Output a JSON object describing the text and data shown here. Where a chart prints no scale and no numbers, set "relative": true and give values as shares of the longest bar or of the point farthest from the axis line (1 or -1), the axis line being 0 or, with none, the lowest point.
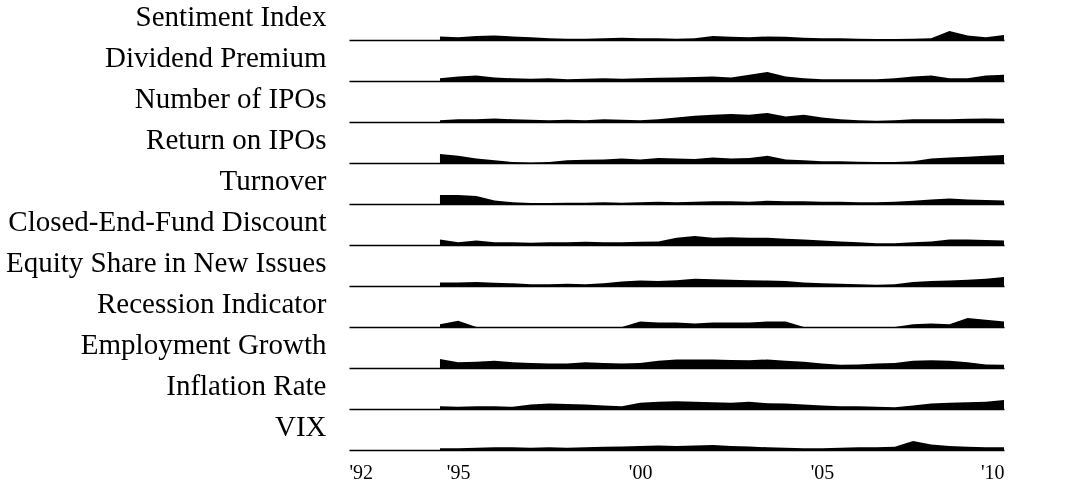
{
  "chart_data": [
    {
      "type": "area",
      "relative": true,
      "ylabel": "Sentiment Index",
      "color": "#000000",
      "xlim": [
        1992,
        2010
      ],
      "x": [
        1994.5,
        1995,
        1995.5,
        1996,
        1996.5,
        1997,
        1997.5,
        1998,
        1998.5,
        1999,
        1999.5,
        2000,
        2000.5,
        2001,
        2001.5,
        2002,
        2002.5,
        2003,
        2003.5,
        2004,
        2004.5,
        2005,
        2005.5,
        2006,
        2006.5,
        2007,
        2007.5,
        2008,
        2008.5,
        2009,
        2009.5,
        2010
      ],
      "values": [
        0.4,
        0.3,
        0.45,
        0.5,
        0.4,
        0.3,
        0.2,
        0.15,
        0.15,
        0.2,
        0.25,
        0.2,
        0.2,
        0.15,
        0.2,
        0.45,
        0.35,
        0.3,
        0.4,
        0.35,
        0.25,
        0.2,
        0.2,
        0.15,
        0.1,
        0.1,
        0.15,
        0.2,
        1.0,
        0.5,
        0.3,
        0.55
      ]
    },
    {
      "type": "area",
      "relative": true,
      "ylabel": "Dividend Premium",
      "color": "#000000",
      "xlim": [
        1992,
        2010
      ],
      "x": [
        1994.5,
        1995,
        1995.5,
        1996,
        1996.5,
        1997,
        1997.5,
        1998,
        1998.5,
        1999,
        1999.5,
        2000,
        2000.5,
        2001,
        2001.5,
        2002,
        2002.5,
        2003,
        2003.5,
        2004,
        2004.5,
        2005,
        2005.5,
        2006,
        2006.5,
        2007,
        2007.5,
        2008,
        2008.5,
        2009,
        2009.5,
        2010
      ],
      "values": [
        0.3,
        0.5,
        0.6,
        0.4,
        0.3,
        0.25,
        0.3,
        0.2,
        0.25,
        0.3,
        0.25,
        0.3,
        0.35,
        0.4,
        0.45,
        0.5,
        0.4,
        0.7,
        1.0,
        0.5,
        0.3,
        0.2,
        0.2,
        0.2,
        0.2,
        0.3,
        0.5,
        0.6,
        0.3,
        0.3,
        0.6,
        0.7
      ]
    },
    {
      "type": "area",
      "relative": true,
      "ylabel": "Number of IPOs",
      "color": "#000000",
      "xlim": [
        1992,
        2010
      ],
      "x": [
        1994.5,
        1995,
        1995.5,
        1996,
        1996.5,
        1997,
        1997.5,
        1998,
        1998.5,
        1999,
        1999.5,
        2000,
        2000.5,
        2001,
        2001.5,
        2002,
        2002.5,
        2003,
        2003.5,
        2004,
        2004.5,
        2005,
        2005.5,
        2006,
        2006.5,
        2007,
        2007.5,
        2008,
        2008.5,
        2009,
        2009.5,
        2010
      ],
      "values": [
        0.2,
        0.3,
        0.3,
        0.4,
        0.3,
        0.25,
        0.2,
        0.25,
        0.2,
        0.3,
        0.25,
        0.2,
        0.3,
        0.5,
        0.7,
        0.8,
        0.9,
        0.8,
        1.0,
        0.6,
        0.8,
        0.5,
        0.3,
        0.2,
        0.15,
        0.2,
        0.3,
        0.3,
        0.3,
        0.35,
        0.4,
        0.35
      ]
    },
    {
      "type": "area",
      "relative": true,
      "ylabel": "Return on IPOs",
      "color": "#000000",
      "xlim": [
        1992,
        2010
      ],
      "x": [
        1994.5,
        1995,
        1995.5,
        1996,
        1996.5,
        1997,
        1997.5,
        1998,
        1998.5,
        1999,
        1999.5,
        2000,
        2000.5,
        2001,
        2001.5,
        2002,
        2002.5,
        2003,
        2003.5,
        2004,
        2004.5,
        2005,
        2005.5,
        2006,
        2006.5,
        2007,
        2007.5,
        2008,
        2008.5,
        2009,
        2009.5,
        2010
      ],
      "values": [
        1.0,
        0.8,
        0.5,
        0.3,
        0.1,
        0.05,
        0.1,
        0.3,
        0.35,
        0.4,
        0.5,
        0.4,
        0.55,
        0.5,
        0.45,
        0.6,
        0.5,
        0.55,
        0.8,
        0.4,
        0.3,
        0.2,
        0.2,
        0.15,
        0.1,
        0.1,
        0.2,
        0.5,
        0.6,
        0.7,
        0.8,
        0.9
      ]
    },
    {
      "type": "area",
      "relative": true,
      "ylabel": "Turnover",
      "color": "#000000",
      "xlim": [
        1992,
        2010
      ],
      "x": [
        1994.5,
        1995,
        1995.5,
        1996,
        1996.5,
        1997,
        1997.5,
        1998,
        1998.5,
        1999,
        1999.5,
        2000,
        2000.5,
        2001,
        2001.5,
        2002,
        2002.5,
        2003,
        2003.5,
        2004,
        2004.5,
        2005,
        2005.5,
        2006,
        2006.5,
        2007,
        2007.5,
        2008,
        2008.5,
        2009,
        2009.5,
        2010
      ],
      "values": [
        1.0,
        1.0,
        0.9,
        0.4,
        0.2,
        0.1,
        0.1,
        0.15,
        0.15,
        0.2,
        0.15,
        0.2,
        0.25,
        0.2,
        0.25,
        0.3,
        0.3,
        0.25,
        0.35,
        0.3,
        0.3,
        0.25,
        0.25,
        0.2,
        0.2,
        0.25,
        0.35,
        0.5,
        0.6,
        0.5,
        0.45,
        0.4
      ]
    },
    {
      "type": "area",
      "relative": true,
      "ylabel": "Closed-End-Fund Discount",
      "color": "#000000",
      "xlim": [
        1992,
        2010
      ],
      "x": [
        1994.5,
        1995,
        1995.5,
        1996,
        1996.5,
        1997,
        1997.5,
        1998,
        1998.5,
        1999,
        1999.5,
        2000,
        2000.5,
        2001,
        2001.5,
        2002,
        2002.5,
        2003,
        2003.5,
        2004,
        2004.5,
        2005,
        2005.5,
        2006,
        2006.5,
        2007,
        2007.5,
        2008,
        2008.5,
        2009,
        2009.5,
        2010
      ],
      "values": [
        0.6,
        0.3,
        0.5,
        0.3,
        0.3,
        0.25,
        0.3,
        0.3,
        0.35,
        0.3,
        0.3,
        0.35,
        0.4,
        0.8,
        1.0,
        0.8,
        0.85,
        0.8,
        0.8,
        0.7,
        0.6,
        0.5,
        0.4,
        0.3,
        0.2,
        0.2,
        0.3,
        0.4,
        0.6,
        0.6,
        0.55,
        0.5
      ]
    },
    {
      "type": "area",
      "relative": true,
      "ylabel": "Equity Share in New Issues",
      "color": "#000000",
      "xlim": [
        1992,
        2010
      ],
      "x": [
        1994.5,
        1995,
        1995.5,
        1996,
        1996.5,
        1997,
        1997.5,
        1998,
        1998.5,
        1999,
        1999.5,
        2000,
        2000.5,
        2001,
        2001.5,
        2002,
        2002.5,
        2003,
        2003.5,
        2004,
        2004.5,
        2005,
        2005.5,
        2006,
        2006.5,
        2007,
        2007.5,
        2008,
        2008.5,
        2009,
        2009.5,
        2010
      ],
      "values": [
        0.4,
        0.4,
        0.45,
        0.35,
        0.3,
        0.2,
        0.2,
        0.25,
        0.2,
        0.3,
        0.5,
        0.6,
        0.55,
        0.65,
        0.8,
        0.75,
        0.7,
        0.65,
        0.6,
        0.55,
        0.4,
        0.3,
        0.25,
        0.2,
        0.15,
        0.2,
        0.45,
        0.55,
        0.6,
        0.7,
        0.8,
        1.0
      ]
    },
    {
      "type": "area",
      "relative": true,
      "ylabel": "Recession Indicator",
      "color": "#000000",
      "xlim": [
        1992,
        2010
      ],
      "x": [
        1994.5,
        1995,
        1995.5,
        1996,
        1996.5,
        1997,
        1997.5,
        1998,
        1998.5,
        1999,
        1999.5,
        2000,
        2000.5,
        2001,
        2001.5,
        2002,
        2002.5,
        2003,
        2003.5,
        2004,
        2004.5,
        2005,
        2005.5,
        2006,
        2006.5,
        2007,
        2007.5,
        2008,
        2008.5,
        2009,
        2009.5,
        2010
      ],
      "values": [
        0.3,
        0.7,
        0,
        0,
        0,
        0,
        0,
        0,
        0,
        0,
        0,
        0.6,
        0.5,
        0.5,
        0.4,
        0.5,
        0.5,
        0.5,
        0.6,
        0.6,
        0,
        0,
        0,
        0,
        0,
        0,
        0.3,
        0.4,
        0.3,
        1.0,
        0.8,
        0.6
      ]
    },
    {
      "type": "area",
      "relative": true,
      "ylabel": "Employment Growth",
      "color": "#000000",
      "xlim": [
        1992,
        2010
      ],
      "x": [
        1994.5,
        1995,
        1995.5,
        1996,
        1996.5,
        1997,
        1997.5,
        1998,
        1998.5,
        1999,
        1999.5,
        2000,
        2000.5,
        2001,
        2001.5,
        2002,
        2002.5,
        2003,
        2003.5,
        2004,
        2004.5,
        2005,
        2005.5,
        2006,
        2006.5,
        2007,
        2007.5,
        2008,
        2008.5,
        2009,
        2009.5,
        2010
      ],
      "values": [
        1.0,
        0.65,
        0.7,
        0.8,
        0.65,
        0.55,
        0.5,
        0.5,
        0.65,
        0.55,
        0.5,
        0.55,
        0.8,
        0.95,
        0.95,
        0.95,
        0.9,
        0.85,
        0.95,
        0.8,
        0.7,
        0.5,
        0.35,
        0.4,
        0.5,
        0.55,
        0.8,
        0.85,
        0.8,
        0.65,
        0.4,
        0.35
      ]
    },
    {
      "type": "area",
      "relative": true,
      "ylabel": "Inflation Rate",
      "color": "#000000",
      "xlim": [
        1992,
        2010
      ],
      "x": [
        1994.5,
        1995,
        1995.5,
        1996,
        1996.5,
        1997,
        1997.5,
        1998,
        1998.5,
        1999,
        1999.5,
        2000,
        2000.5,
        2001,
        2001.5,
        2002,
        2002.5,
        2003,
        2003.5,
        2004,
        2004.5,
        2005,
        2005.5,
        2006,
        2006.5,
        2007,
        2007.5,
        2008,
        2008.5,
        2009,
        2009.5,
        2010
      ],
      "values": [
        0.3,
        0.25,
        0.3,
        0.3,
        0.25,
        0.5,
        0.6,
        0.55,
        0.5,
        0.4,
        0.3,
        0.7,
        0.8,
        0.85,
        0.8,
        0.75,
        0.7,
        0.8,
        0.65,
        0.6,
        0.5,
        0.4,
        0.3,
        0.3,
        0.25,
        0.2,
        0.4,
        0.6,
        0.7,
        0.75,
        0.8,
        1.0
      ]
    },
    {
      "type": "area",
      "relative": true,
      "ylabel": "VIX",
      "color": "#000000",
      "xlim": [
        1992,
        2010
      ],
      "tick_labels": "x",
      "xticks": [
        {
          "value": 1992,
          "label": "'92"
        },
        {
          "value": 1995,
          "label": "'95"
        },
        {
          "value": 2000,
          "label": "'00"
        },
        {
          "value": 2005,
          "label": "'05"
        },
        {
          "value": 2010,
          "label": "'10"
        }
      ],
      "x": [
        1994.5,
        1995,
        1995.5,
        1996,
        1996.5,
        1997,
        1997.5,
        1998,
        1998.5,
        1999,
        1999.5,
        2000,
        2000.5,
        2001,
        2001.5,
        2002,
        2002.5,
        2003,
        2003.5,
        2004,
        2004.5,
        2005,
        2005.5,
        2006,
        2006.5,
        2007,
        2007.5,
        2008,
        2008.5,
        2009,
        2009.5,
        2010
      ],
      "values": [
        0.2,
        0.2,
        0.25,
        0.3,
        0.3,
        0.25,
        0.3,
        0.25,
        0.3,
        0.35,
        0.4,
        0.45,
        0.5,
        0.45,
        0.5,
        0.55,
        0.45,
        0.4,
        0.3,
        0.25,
        0.2,
        0.2,
        0.25,
        0.3,
        0.3,
        0.35,
        1.0,
        0.6,
        0.45,
        0.35,
        0.3,
        0.3
      ]
    }
  ]
}
